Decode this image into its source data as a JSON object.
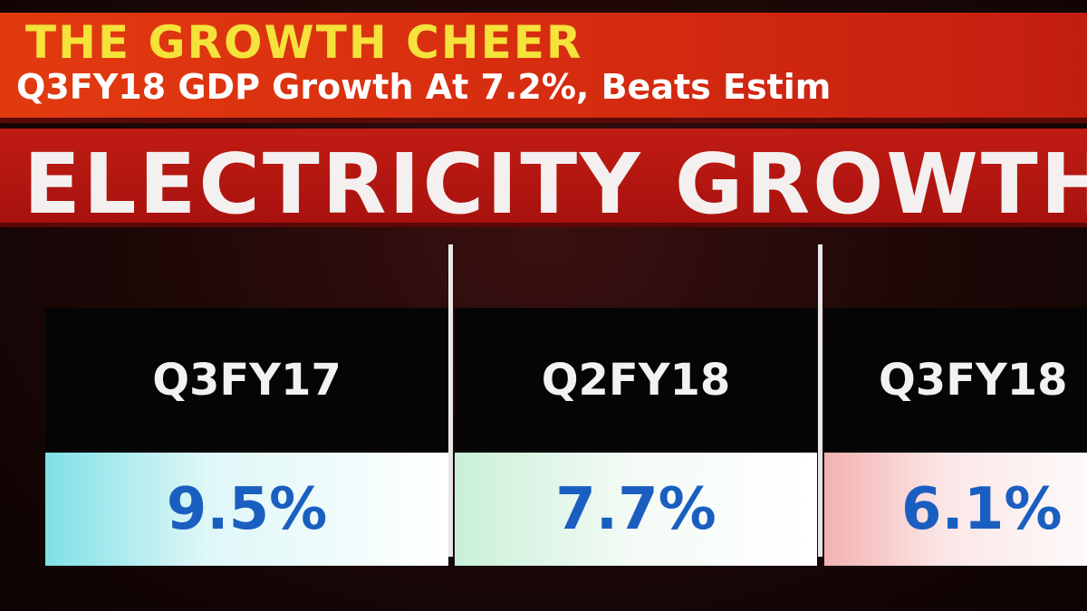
{
  "header": {
    "kicker": "THE GROWTH CHEER",
    "headline": "Q3FY18 GDP Growth At 7.2%, Beats Estim"
  },
  "title": "ELECTRICITY GROWTH",
  "panels": [
    {
      "label": "Q3FY17",
      "value": "9.5%"
    },
    {
      "label": "Q2FY18",
      "value": "7.7%"
    },
    {
      "label": "Q3FY18",
      "value": "6.1%"
    }
  ]
}
